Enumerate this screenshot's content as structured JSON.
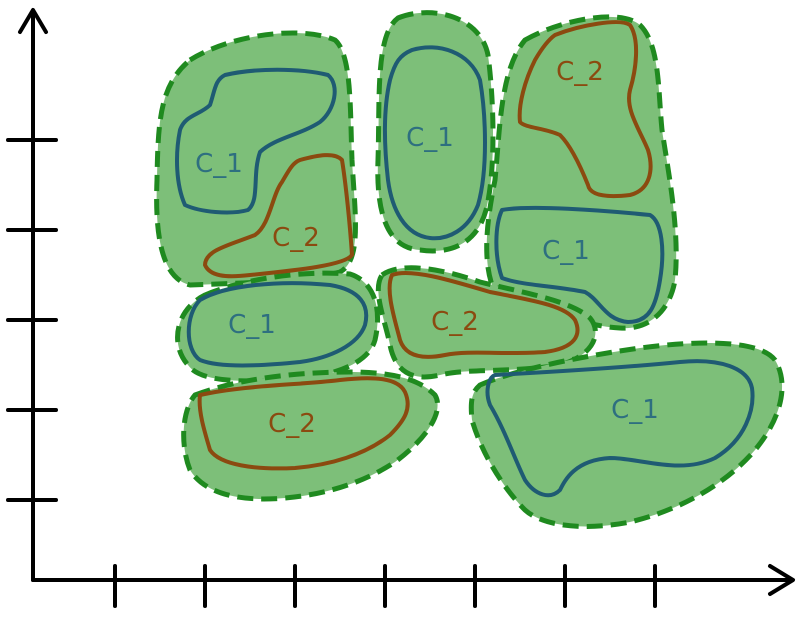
{
  "colors": {
    "background": "#ffffff",
    "axis": "#000000",
    "region_fill": "#7dbf79",
    "region_border": "#1f8a1f",
    "c1_stroke": "#1f5b73",
    "c2_stroke": "#8b4a10",
    "c1_text": "#2e6f80",
    "c2_text": "#8b4a10"
  },
  "axes": {
    "x_ticks": 7,
    "y_ticks": 5,
    "has_arrows": true,
    "tick_labels_shown": false
  },
  "regions": [
    {
      "name": "top-left-region",
      "clusters": [
        {
          "label": "C_1",
          "kind": "c1"
        },
        {
          "label": "C_2",
          "kind": "c2"
        }
      ]
    },
    {
      "name": "top-middle-region",
      "clusters": [
        {
          "label": "C_1",
          "kind": "c1"
        }
      ]
    },
    {
      "name": "top-right-region",
      "clusters": [
        {
          "label": "C_2",
          "kind": "c2"
        },
        {
          "label": "C_1",
          "kind": "c1"
        }
      ]
    },
    {
      "name": "middle-left-region",
      "clusters": [
        {
          "label": "C_1",
          "kind": "c1"
        }
      ]
    },
    {
      "name": "middle-center-region",
      "clusters": [
        {
          "label": "C_2",
          "kind": "c2"
        }
      ]
    },
    {
      "name": "bottom-left-region",
      "clusters": [
        {
          "label": "C_2",
          "kind": "c2"
        }
      ]
    },
    {
      "name": "bottom-right-region",
      "clusters": [
        {
          "label": "C_1",
          "kind": "c1"
        }
      ]
    }
  ]
}
